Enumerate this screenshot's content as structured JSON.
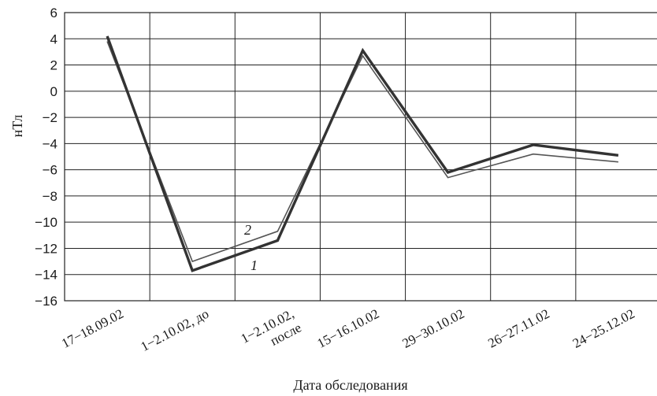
{
  "chart_data": {
    "type": "line",
    "title": "",
    "xlabel": "Дата обследования",
    "ylabel": "нТл",
    "ylim": [
      -16,
      6
    ],
    "yticks": [
      6,
      4,
      2,
      0,
      -2,
      -4,
      -6,
      -8,
      -10,
      -12,
      -14,
      -16
    ],
    "ytick_labels": [
      "6",
      "4",
      "2",
      "0",
      "−2",
      "−4",
      "−6",
      "−8",
      "−10",
      "−12",
      "−14",
      "−16"
    ],
    "categories": [
      "17−18.09.02",
      "1−2.10.02, до",
      "1−2.10.02, после",
      "15−16.10.02",
      "29−30.10.02",
      "26−27.11.02",
      "24−25.12.02"
    ],
    "grid": true,
    "series": [
      {
        "name": "1",
        "values": [
          4.2,
          -13.7,
          -11.4,
          3.1,
          -6.2,
          -4.1,
          -4.9
        ]
      },
      {
        "name": "2",
        "values": [
          3.8,
          -13.0,
          -10.7,
          2.7,
          -6.6,
          -4.8,
          -5.4
        ]
      }
    ],
    "colors": {
      "series_1": "#333333",
      "series_2": "#555555",
      "grid": "#222222"
    }
  }
}
